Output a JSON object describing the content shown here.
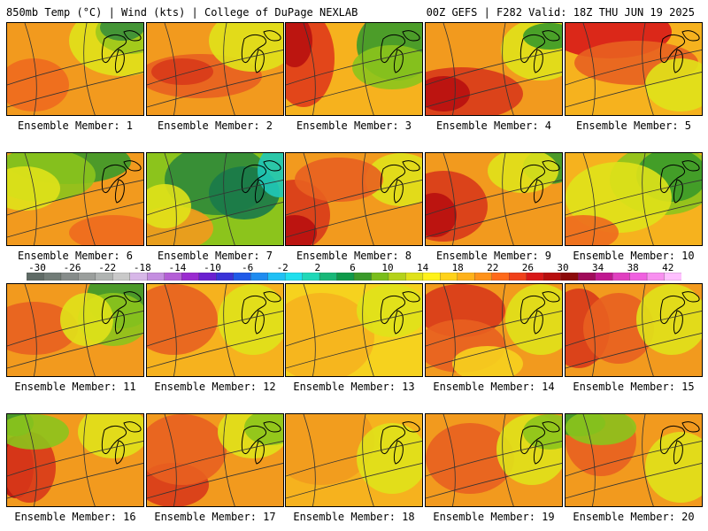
{
  "header": {
    "left": "850mb Temp (°C) | Wind (kts) | College of DuPage NEXLAB",
    "right": "00Z GEFS | F282 Valid: 18Z THU JUN 19 2025"
  },
  "colorbar": {
    "labels": [
      "-30",
      "-26",
      "-22",
      "-18",
      "-14",
      "-10",
      "-6",
      "-2",
      "2",
      "6",
      "10",
      "14",
      "18",
      "22",
      "26",
      "30",
      "34",
      "38",
      "42"
    ],
    "colors": [
      "#5f6b66",
      "#717c77",
      "#868c8a",
      "#9a9e9c",
      "#b0b4b2",
      "#c9c9c9",
      "#d7b7e8",
      "#c48ee0",
      "#b45fd6",
      "#9a2bd0",
      "#6a1fd0",
      "#3a33d8",
      "#1f5ae8",
      "#1f8cf0",
      "#1fc0f5",
      "#1fe0ee",
      "#20d8b8",
      "#18b878",
      "#0f9a4a",
      "#3a9a2a",
      "#7abe1c",
      "#b4d21a",
      "#e0e21a",
      "#fff21a",
      "#ffd21a",
      "#ffb21a",
      "#ff921a",
      "#ff6a1a",
      "#f0401a",
      "#d81818",
      "#b80e0e",
      "#8c0a0a",
      "#a00a5a",
      "#c01890",
      "#e040c0",
      "#f060e0",
      "#f890f0",
      "#ffc0ff"
    ]
  },
  "panels": [
    {
      "label": "Ensemble Member: 1"
    },
    {
      "label": "Ensemble Member: 2"
    },
    {
      "label": "Ensemble Member: 3"
    },
    {
      "label": "Ensemble Member: 4"
    },
    {
      "label": "Ensemble Member: 5"
    },
    {
      "label": "Ensemble Member: 6"
    },
    {
      "label": "Ensemble Member: 7"
    },
    {
      "label": "Ensemble Member: 8"
    },
    {
      "label": "Ensemble Member: 9"
    },
    {
      "label": "Ensemble Member: 10"
    },
    {
      "label": "Ensemble Member: 11"
    },
    {
      "label": "Ensemble Member: 12"
    },
    {
      "label": "Ensemble Member: 13"
    },
    {
      "label": "Ensemble Member: 14"
    },
    {
      "label": "Ensemble Member: 15"
    },
    {
      "label": "Ensemble Member: 16"
    },
    {
      "label": "Ensemble Member: 17"
    },
    {
      "label": "Ensemble Member: 18"
    },
    {
      "label": "Ensemble Member: 19"
    },
    {
      "label": "Ensemble Member: 20"
    }
  ]
}
